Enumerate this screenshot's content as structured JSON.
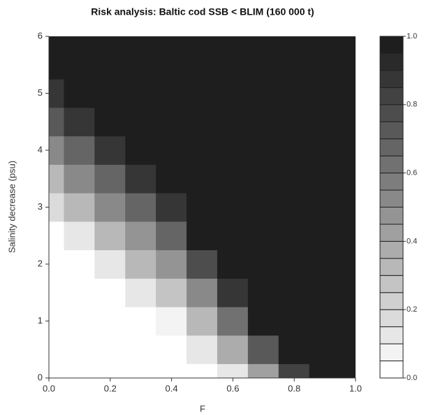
{
  "chart_data": {
    "type": "filled-contour",
    "title": "Risk analysis: Baltic cod SSB < BLIM (160 000 t)",
    "x_label": "F",
    "y_label": "Salinity decrease (psu)",
    "x": [
      0,
      0.1,
      0.2,
      0.3,
      0.4,
      0.5,
      0.6,
      0.7,
      0.8,
      0.9,
      1.0
    ],
    "y": [
      0,
      0.5,
      1,
      1.5,
      2,
      2.5,
      3,
      3.5,
      4,
      4.5,
      5,
      5.5,
      6
    ],
    "z": [
      [
        0,
        0,
        0,
        0,
        0,
        0,
        0.14,
        0.44,
        0.8,
        1,
        1
      ],
      [
        0,
        0,
        0,
        0,
        0,
        0.13,
        0.38,
        0.72,
        1,
        1,
        1
      ],
      [
        0,
        0,
        0,
        0,
        0.08,
        0.33,
        0.62,
        1,
        1,
        1,
        1
      ],
      [
        0,
        0,
        0,
        0.11,
        0.28,
        0.54,
        0.86,
        1,
        1,
        1,
        1
      ],
      [
        0,
        0,
        0.12,
        0.3,
        0.48,
        0.75,
        1,
        1,
        1,
        1,
        1
      ],
      [
        0,
        0.12,
        0.31,
        0.48,
        0.68,
        0.96,
        1,
        1,
        1,
        1,
        1
      ],
      [
        0.15,
        0.31,
        0.5,
        0.67,
        0.88,
        1,
        1,
        1,
        1,
        1,
        1
      ],
      [
        0.33,
        0.5,
        0.69,
        0.85,
        1,
        1,
        1,
        1,
        1,
        1,
        1
      ],
      [
        0.52,
        0.69,
        0.88,
        1,
        1,
        1,
        1,
        1,
        1,
        1,
        1
      ],
      [
        0.7,
        0.88,
        1,
        1,
        1,
        1,
        1,
        1,
        1,
        1,
        1
      ],
      [
        0.89,
        1,
        1,
        1,
        1,
        1,
        1,
        1,
        1,
        1,
        1
      ],
      [
        1,
        1,
        1,
        1,
        1,
        1,
        1,
        1,
        1,
        1,
        1
      ],
      [
        1,
        1,
        1,
        1,
        1,
        1,
        1,
        1,
        1,
        1,
        1
      ]
    ],
    "xlim": [
      0,
      1
    ],
    "ylim": [
      0,
      6
    ],
    "xticks": [
      {
        "value": 0,
        "label": "0.0"
      },
      {
        "value": 0.2,
        "label": "0.2"
      },
      {
        "value": 0.4,
        "label": "0.4"
      },
      {
        "value": 0.6,
        "label": "0.6"
      },
      {
        "value": 0.8,
        "label": "0.8"
      },
      {
        "value": 1,
        "label": "1.0"
      }
    ],
    "yticks": [
      0,
      1,
      2,
      3,
      4,
      5,
      6
    ],
    "zlim": [
      0,
      1
    ],
    "levels": [
      0,
      0.05,
      0.1,
      0.15,
      0.2,
      0.25,
      0.3,
      0.35,
      0.4,
      0.45,
      0.5,
      0.55,
      0.6,
      0.65,
      0.7,
      0.75,
      0.8,
      0.85,
      0.9,
      0.95,
      1
    ],
    "zticks": [
      {
        "value": 0,
        "label": "0.0"
      },
      {
        "value": 0.2,
        "label": "0.2"
      },
      {
        "value": 0.4,
        "label": "0.4"
      },
      {
        "value": 0.6,
        "label": "0.6"
      },
      {
        "value": 0.8,
        "label": "0.8"
      },
      {
        "value": 1,
        "label": "1.0"
      }
    ]
  }
}
